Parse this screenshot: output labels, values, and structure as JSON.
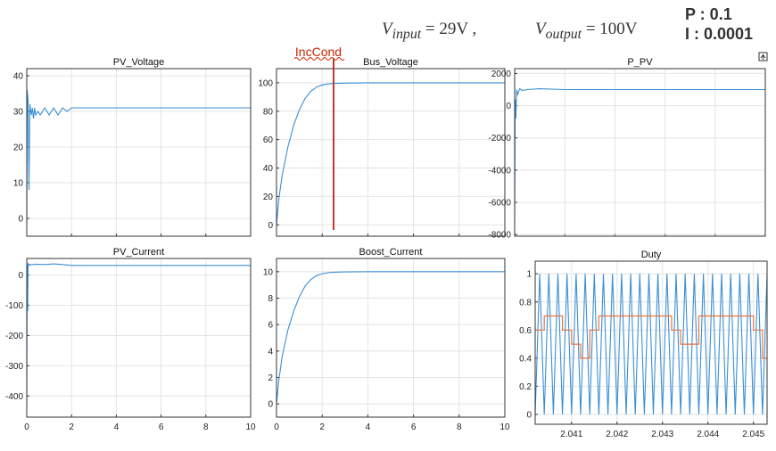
{
  "header": {
    "vin_var": "V",
    "vin_sub": "input",
    "vin_rest": " = 29V ,",
    "vout_var": "V",
    "vout_sub": "output",
    "vout_rest": " = 100V",
    "p_gain": "P : 0.1",
    "i_gain": "I : 0.0001"
  },
  "annotation": {
    "label": "IncCond",
    "color": "#cc2200"
  },
  "colors": {
    "signal": "#3a8fd6",
    "reference": "#e8743b",
    "marker": "#c0392b"
  },
  "icons": {
    "export": "export-figure-icon"
  },
  "chart_data": [
    {
      "type": "line",
      "title": "PV_Voltage",
      "xlim": [
        0,
        10
      ],
      "ylim": [
        -5,
        42
      ],
      "xticks": [
        "",
        "",
        "",
        "",
        "",
        ""
      ],
      "yticks": [
        0,
        10,
        20,
        30,
        40
      ],
      "grid": true,
      "series": [
        {
          "x": [
            0,
            0.02,
            0.06,
            0.1,
            0.14,
            0.2,
            0.25,
            0.3,
            0.35,
            0.4,
            0.5,
            0.6,
            0.8,
            1.0,
            1.2,
            1.4,
            1.6,
            1.8,
            2.0,
            2.5,
            4,
            6,
            8,
            10
          ],
          "y": [
            -2,
            36,
            33,
            8,
            32,
            29,
            31,
            28,
            31,
            29,
            30,
            29,
            31,
            29,
            31,
            29,
            31,
            30,
            31,
            31,
            31,
            31,
            31,
            31
          ]
        }
      ]
    },
    {
      "type": "line",
      "title": "Bus_Voltage",
      "xlim": [
        0,
        10
      ],
      "ylim": [
        -8,
        110
      ],
      "xticks": [
        "",
        "",
        "",
        "",
        "",
        ""
      ],
      "yticks": [
        0,
        20,
        40,
        60,
        80,
        100
      ],
      "grid": true,
      "marker_x": 2.5,
      "series": [
        {
          "x": [
            0,
            0.1,
            0.25,
            0.5,
            0.75,
            1.0,
            1.25,
            1.5,
            1.75,
            2.0,
            2.25,
            2.5,
            3,
            4,
            6,
            8,
            10
          ],
          "y": [
            0,
            18,
            35,
            55,
            70,
            81,
            89,
            94,
            97,
            98.5,
            99.2,
            99.6,
            99.8,
            100,
            100,
            100,
            100
          ]
        }
      ]
    },
    {
      "type": "line",
      "title": "P_PV",
      "xlim": [
        0,
        10
      ],
      "ylim": [
        -8100,
        2300
      ],
      "xticks": [
        "",
        "",
        "",
        "",
        "",
        ""
      ],
      "yticks": [
        2000,
        0,
        -2000,
        -4000,
        -6000,
        -8000
      ],
      "grid": true,
      "series": [
        {
          "x": [
            0,
            0.02,
            0.05,
            0.08,
            0.12,
            0.2,
            0.3,
            0.5,
            1.0,
            2.0,
            4,
            6,
            8,
            10
          ],
          "y": [
            -7200,
            400,
            -800,
            1000,
            700,
            1050,
            950,
            1000,
            1050,
            1000,
            1000,
            1000,
            1000,
            1000
          ]
        }
      ]
    },
    {
      "type": "line",
      "title": "PV_Current",
      "xlim": [
        0,
        10
      ],
      "ylim": [
        -470,
        55
      ],
      "xticks": [
        0,
        2,
        4,
        6,
        8,
        10
      ],
      "yticks": [
        0,
        -100,
        -200,
        -300,
        -400
      ],
      "grid": true,
      "series": [
        {
          "x": [
            0,
            0.02,
            0.04,
            0.06,
            0.1,
            0.15,
            0.2,
            0.4,
            0.8,
            1.2,
            1.6,
            2.0,
            4,
            6,
            8,
            10
          ],
          "y": [
            -430,
            35,
            -120,
            38,
            33,
            36,
            34,
            36,
            35,
            37,
            35,
            32,
            32,
            32,
            32,
            32
          ]
        }
      ]
    },
    {
      "type": "line",
      "title": "Boost_Current",
      "xlim": [
        0,
        10
      ],
      "ylim": [
        -1,
        11
      ],
      "xticks": [
        0,
        2,
        4,
        6,
        8,
        10
      ],
      "yticks": [
        0,
        2,
        4,
        6,
        8,
        10
      ],
      "grid": true,
      "series": [
        {
          "x": [
            0,
            0.1,
            0.25,
            0.5,
            0.75,
            1.0,
            1.25,
            1.5,
            1.75,
            2.0,
            2.25,
            2.5,
            3,
            4,
            6,
            8,
            10
          ],
          "y": [
            0,
            1.8,
            3.6,
            5.6,
            7.0,
            8.1,
            8.9,
            9.4,
            9.7,
            9.85,
            9.92,
            9.96,
            9.98,
            10,
            10,
            10,
            10
          ]
        }
      ]
    },
    {
      "type": "line",
      "title": "Duty",
      "xlim": [
        2.0402,
        2.0453
      ],
      "ylim": [
        -0.07,
        1.09
      ],
      "xticks": [
        2.041,
        2.042,
        2.043,
        2.044,
        2.045
      ],
      "yticks": [
        0,
        0.2,
        0.4,
        0.6,
        0.8,
        1
      ],
      "grid": true,
      "carrier": {
        "name": "",
        "period": 0.0002,
        "min": 0,
        "max": 1
      },
      "reference": {
        "name": "",
        "x": [
          2.0402,
          2.0404,
          2.0406,
          2.0408,
          2.041,
          2.0412,
          2.0414,
          2.0416,
          2.0418,
          2.042,
          2.0422,
          2.0424,
          2.0426,
          2.0428,
          2.043,
          2.0432,
          2.0434,
          2.0436,
          2.0438,
          2.044,
          2.0442,
          2.0444,
          2.0446,
          2.0448,
          2.045,
          2.0452
        ],
        "y": [
          0.6,
          0.7,
          0.7,
          0.6,
          0.5,
          0.4,
          0.6,
          0.7,
          0.7,
          0.7,
          0.7,
          0.7,
          0.7,
          0.7,
          0.7,
          0.6,
          0.5,
          0.5,
          0.7,
          0.7,
          0.7,
          0.7,
          0.7,
          0.7,
          0.6,
          0.4
        ]
      }
    }
  ]
}
